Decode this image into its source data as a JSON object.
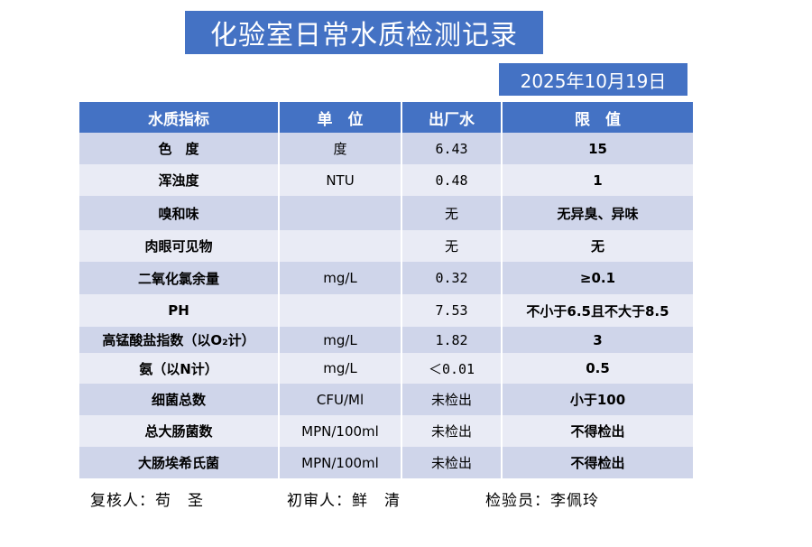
{
  "header": {
    "title": "化验室日常水质检测记录",
    "date": "2025年10月19日"
  },
  "table": {
    "columns": [
      "水质指标",
      "单　位",
      "出厂水",
      "限　值"
    ],
    "rows": [
      [
        "色　度",
        "度",
        "6.43",
        "15"
      ],
      [
        "浑浊度",
        "NTU",
        "0.48",
        "1"
      ],
      [
        "嗅和味",
        null,
        "无",
        "无异臭、异味"
      ],
      [
        "肉眼可见物",
        null,
        "无",
        "无"
      ],
      [
        "二氧化氯余量",
        "mg/L",
        "0.32",
        "≥0.1"
      ],
      [
        "PH",
        null,
        "7.53",
        "不小于6.5且不大于8.5"
      ],
      [
        "高锰酸盐指数（以O₂计）",
        "mg/L",
        "1.82",
        "3"
      ],
      [
        "氨（以N计）",
        "mg/L",
        "＜0.01",
        "0.5"
      ],
      [
        "细菌总数",
        "CFU/Ml",
        "未检出",
        "小于100"
      ],
      [
        "总大肠菌数",
        "MPN/100ml",
        "未检出",
        "不得检出"
      ],
      [
        "大肠埃希氏菌",
        "MPN/100ml",
        "未检出",
        "不得检出"
      ]
    ]
  },
  "footer": {
    "reviewer": "复核人：苟　圣",
    "first_review": "初审人：鲜　清",
    "inspector": "检验员：李佩玲"
  }
}
